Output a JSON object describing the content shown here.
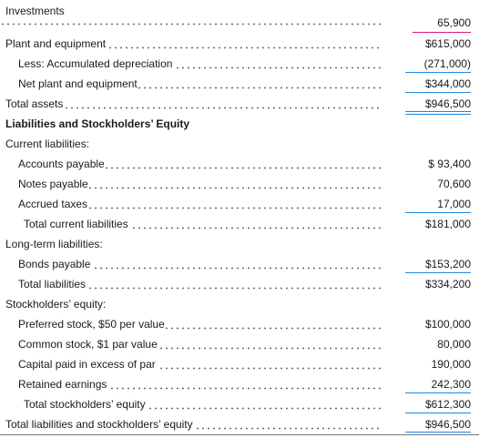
{
  "statement": {
    "rows": [
      {
        "label": "Investments",
        "amount": "",
        "kind": "text"
      },
      {
        "label": "",
        "amount": "65,900",
        "kind": "amount-only"
      },
      {
        "label": "Plant and equipment",
        "amount": "$615,000"
      },
      {
        "label": "Less: Accumulated depreciation",
        "amount": "(271,000)"
      },
      {
        "label": "Net plant and equipment",
        "amount": "$344,000"
      },
      {
        "label": "Total assets",
        "amount": "$946,500"
      },
      {
        "label": "Liabilities and Stockholders’ Equity",
        "amount": "",
        "kind": "heading"
      },
      {
        "label": "Current liabilities:",
        "amount": "",
        "kind": "text"
      },
      {
        "label": "Accounts payable",
        "amount": "$ 93,400"
      },
      {
        "label": "Notes payable",
        "amount": "70,600"
      },
      {
        "label": "Accrued taxes",
        "amount": "17,000"
      },
      {
        "label": "Total current liabilities",
        "amount": "$181,000"
      },
      {
        "label": "Long-term liabilities:",
        "amount": "",
        "kind": "text"
      },
      {
        "label": "Bonds payable",
        "amount": "$153,200"
      },
      {
        "label": "Total liabilities",
        "amount": "$334,200"
      },
      {
        "label": "Stockholders’ equity:",
        "amount": "",
        "kind": "text"
      },
      {
        "label": "Preferred stock, $50 per value",
        "amount": "$100,000"
      },
      {
        "label": "Common stock, $1 par value",
        "amount": "80,000"
      },
      {
        "label": "Capital paid in excess of par",
        "amount": "190,000"
      },
      {
        "label": "Retained earnings",
        "amount": "242,300"
      },
      {
        "label": "Total stockholders’ equity",
        "amount": "$612,300"
      },
      {
        "label": "Total liabilities and stockholders’ equity",
        "amount": "$946,500"
      }
    ]
  },
  "colors": {
    "rule_top": "#d81b7e",
    "rule_bottom": "#1e88e5"
  }
}
